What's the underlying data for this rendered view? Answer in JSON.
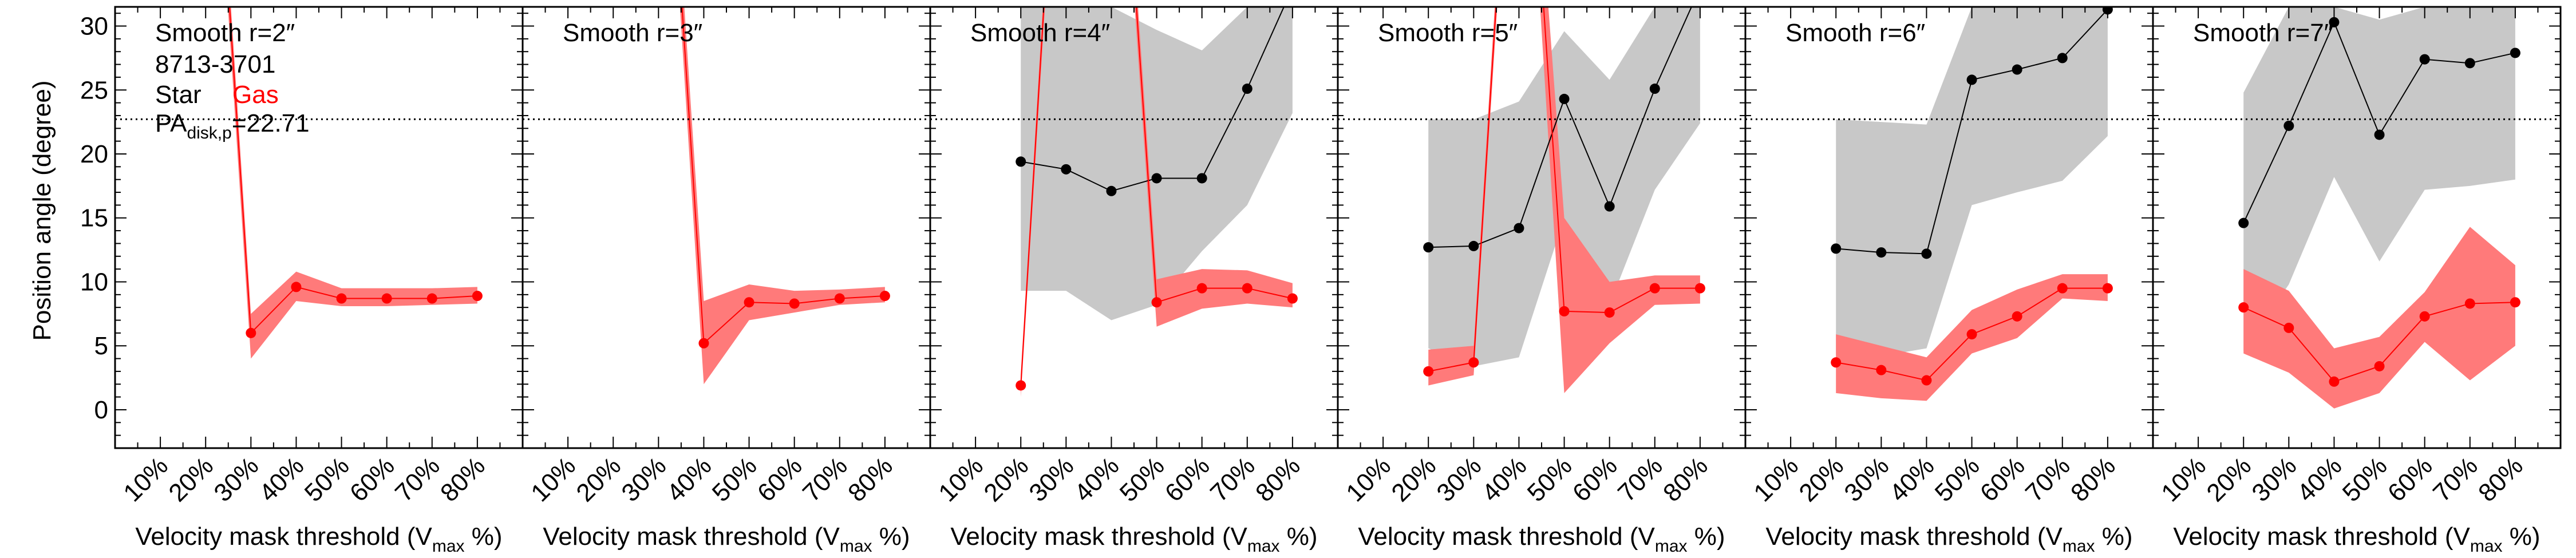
{
  "figure": {
    "ylabel": "Position angle (degree)",
    "xlabel_main": "Velocity mask threshold (V",
    "xlabel_sub": "max",
    "xlabel_end": " %)"
  },
  "chart_data": {
    "type": "line",
    "ylim": [
      -3,
      31.5
    ],
    "yticks": [
      0,
      5,
      10,
      15,
      20,
      25,
      30
    ],
    "xlim": [
      0,
      9
    ],
    "xtick_labels": [
      "10%",
      "20%",
      "30%",
      "40%",
      "50%",
      "60%",
      "70%",
      "80%"
    ],
    "reference_line": {
      "value": 22.71,
      "style": "dotted"
    },
    "galaxy_id": "8713-3701",
    "legend": {
      "star_label": "Star",
      "gas_label": "Gas",
      "pa_text": "PA",
      "pa_sub": "disk,p",
      "pa_value": "=22.71"
    },
    "colors": {
      "star": "#000000",
      "gas": "#ff0000",
      "star_band": "#c8c8c8",
      "gas_band": "#ff7a7a"
    },
    "panels": [
      {
        "title": "Smooth r=2″",
        "star": {
          "x": [],
          "y": [],
          "band_lo": [],
          "band_hi": []
        },
        "gas": {
          "x": [
            2,
            3,
            4,
            5,
            6,
            7,
            8
          ],
          "y": [
            60,
            6.0,
            9.6,
            8.7,
            8.7,
            8.7,
            8.9
          ],
          "band_lo": [
            58,
            4.0,
            8.5,
            8.1,
            8.1,
            8.2,
            8.3
          ],
          "band_hi": [
            62,
            7.5,
            10.8,
            9.5,
            9.5,
            9.5,
            9.6
          ]
        }
      },
      {
        "title": "Smooth r=3″",
        "star": {
          "x": [],
          "y": [],
          "band_lo": [],
          "band_hi": []
        },
        "gas": {
          "x": [
            3,
            4,
            5,
            6,
            7,
            8
          ],
          "y": [
            60,
            5.2,
            8.4,
            8.3,
            8.7,
            8.9
          ],
          "band_lo": [
            58,
            2.0,
            7.0,
            7.6,
            8.2,
            8.4
          ],
          "band_hi": [
            62,
            8.5,
            9.8,
            9.3,
            9.4,
            9.6
          ]
        }
      },
      {
        "title": "Smooth r=4″",
        "star": {
          "x": [
            2,
            3,
            4,
            5,
            6,
            7,
            8
          ],
          "y": [
            19.4,
            18.8,
            17.1,
            18.1,
            18.1,
            25.1,
            33
          ],
          "band_lo": [
            9.3,
            9.3,
            7.0,
            8.2,
            12.4,
            16.0,
            23.2
          ],
          "band_hi": [
            31.5,
            31.5,
            31.5,
            29.7,
            28.1,
            31.5,
            31.5
          ]
        },
        "gas": {
          "x": [
            2,
            3,
            4,
            5,
            6,
            7,
            8
          ],
          "y": [
            1.9,
            60,
            60,
            8.4,
            9.5,
            9.5,
            8.7
          ],
          "band_lo": [
            1.0,
            58,
            58,
            6.5,
            7.9,
            8.3,
            8.0
          ],
          "band_hi": [
            2.8,
            62,
            62,
            10.2,
            11.0,
            10.9,
            9.9
          ]
        }
      },
      {
        "title": "Smooth r=5″",
        "star": {
          "x": [
            2,
            3,
            4,
            5,
            6,
            7,
            8
          ],
          "y": [
            12.7,
            12.8,
            14.2,
            24.3,
            15.9,
            25.1,
            33
          ],
          "band_lo": [
            4.8,
            3.4,
            4.1,
            15.0,
            8.2,
            17.2,
            22.4
          ],
          "band_hi": [
            22.7,
            22.7,
            24.1,
            29.6,
            25.8,
            31.5,
            31.5
          ]
        },
        "gas": {
          "x": [
            2,
            3,
            4,
            5,
            6,
            7,
            8
          ],
          "y": [
            3.0,
            3.7,
            60,
            7.7,
            7.6,
            9.5,
            9.5
          ],
          "band_lo": [
            1.9,
            2.7,
            58,
            1.3,
            5.2,
            8.2,
            8.3
          ],
          "band_hi": [
            4.7,
            5.0,
            62,
            15.0,
            10.0,
            10.5,
            10.5
          ]
        }
      },
      {
        "title": "Smooth r=6″",
        "star": {
          "x": [
            2,
            3,
            4,
            5,
            6,
            7,
            8
          ],
          "y": [
            12.6,
            12.3,
            12.2,
            25.8,
            26.6,
            27.5,
            31.3
          ],
          "band_lo": [
            4.3,
            4.2,
            4.8,
            16.0,
            17.0,
            17.9,
            21.4
          ],
          "band_hi": [
            22.7,
            22.5,
            22.3,
            31.5,
            31.5,
            31.5,
            31.5
          ]
        },
        "gas": {
          "x": [
            2,
            3,
            4,
            5,
            6,
            7,
            8
          ],
          "y": [
            3.7,
            3.1,
            2.3,
            5.9,
            7.3,
            9.5,
            9.5
          ],
          "band_lo": [
            1.3,
            0.9,
            0.7,
            4.4,
            5.6,
            8.7,
            8.5
          ],
          "band_hi": [
            5.9,
            5.0,
            4.1,
            7.8,
            9.4,
            10.6,
            10.6
          ]
        }
      },
      {
        "title": "Smooth r=7″",
        "star": {
          "x": [
            2,
            3,
            4,
            5,
            6,
            7,
            8
          ],
          "y": [
            14.6,
            22.2,
            30.3,
            21.5,
            27.4,
            27.1,
            27.9
          ],
          "band_lo": [
            4.6,
            9.8,
            18.2,
            11.6,
            17.2,
            17.5,
            18.0
          ],
          "band_hi": [
            24.8,
            31.5,
            31.5,
            30.5,
            31.5,
            31.5,
            31.5
          ]
        },
        "gas": {
          "x": [
            2,
            3,
            4,
            5,
            6,
            7,
            8
          ],
          "y": [
            8.0,
            6.4,
            2.2,
            3.4,
            7.3,
            8.3,
            8.4
          ],
          "band_lo": [
            4.4,
            2.9,
            0.1,
            1.3,
            5.3,
            2.3,
            5.0
          ],
          "band_hi": [
            11.0,
            9.3,
            4.8,
            5.7,
            9.2,
            14.3,
            11.3
          ]
        }
      }
    ]
  }
}
